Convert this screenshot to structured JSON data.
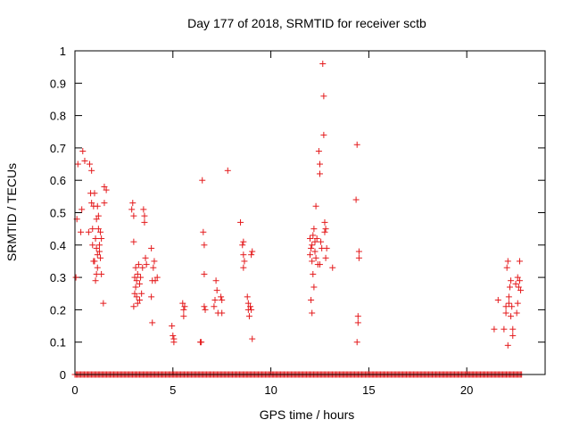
{
  "chart_data": {
    "type": "scatter",
    "title": "Day 177 of 2018, SRMTID for receiver sctb",
    "xlabel": "GPS time / hours",
    "ylabel": "SRMTID / TECUs",
    "xlim": [
      0,
      24
    ],
    "ylim": [
      0,
      1
    ],
    "xticks": [
      "0",
      "5",
      "10",
      "15",
      "20"
    ],
    "xtick_values": [
      0,
      5,
      10,
      15,
      20
    ],
    "yticks": [
      "0",
      "0.1",
      "0.2",
      "0.3",
      "0.4",
      "0.5",
      "0.6",
      "0.7",
      "0.8",
      "0.9",
      "1"
    ],
    "ytick_values": [
      0,
      0.1,
      0.2,
      0.3,
      0.4,
      0.5,
      0.6,
      0.7,
      0.8,
      0.9,
      1
    ],
    "marker": "plus",
    "color": "#e41a1c",
    "grid": false,
    "series": [
      {
        "name": "SRMTID",
        "points": [
          [
            0.05,
            0.3
          ],
          [
            0.1,
            0.48
          ],
          [
            0.15,
            0.65
          ],
          [
            0.3,
            0.44
          ],
          [
            0.35,
            0.51
          ],
          [
            0.4,
            0.69
          ],
          [
            0.5,
            0.66
          ],
          [
            0.7,
            0.44
          ],
          [
            0.75,
            0.65
          ],
          [
            0.8,
            0.56
          ],
          [
            0.85,
            0.63
          ],
          [
            0.85,
            0.53
          ],
          [
            0.9,
            0.45
          ],
          [
            0.9,
            0.4
          ],
          [
            0.95,
            0.35
          ],
          [
            0.95,
            0.52
          ],
          [
            1.0,
            0.56
          ],
          [
            1.0,
            0.35
          ],
          [
            1.05,
            0.29
          ],
          [
            1.05,
            0.42
          ],
          [
            1.1,
            0.48
          ],
          [
            1.1,
            0.39
          ],
          [
            1.1,
            0.31
          ],
          [
            1.15,
            0.52
          ],
          [
            1.15,
            0.37
          ],
          [
            1.15,
            0.33
          ],
          [
            1.2,
            0.49
          ],
          [
            1.2,
            0.45
          ],
          [
            1.25,
            0.38
          ],
          [
            1.25,
            0.4
          ],
          [
            1.3,
            0.44
          ],
          [
            1.3,
            0.36
          ],
          [
            1.35,
            0.42
          ],
          [
            1.35,
            0.31
          ],
          [
            1.45,
            0.22
          ],
          [
            1.5,
            0.58
          ],
          [
            1.5,
            0.53
          ],
          [
            1.6,
            0.57
          ],
          [
            2.9,
            0.51
          ],
          [
            2.95,
            0.53
          ],
          [
            3.0,
            0.41
          ],
          [
            3.0,
            0.49
          ],
          [
            3.0,
            0.21
          ],
          [
            3.05,
            0.25
          ],
          [
            3.05,
            0.3
          ],
          [
            3.1,
            0.33
          ],
          [
            3.1,
            0.27
          ],
          [
            3.15,
            0.29
          ],
          [
            3.15,
            0.24
          ],
          [
            3.2,
            0.22
          ],
          [
            3.2,
            0.31
          ],
          [
            3.25,
            0.34
          ],
          [
            3.3,
            0.28
          ],
          [
            3.3,
            0.23
          ],
          [
            3.35,
            0.3
          ],
          [
            3.4,
            0.25
          ],
          [
            3.45,
            0.33
          ],
          [
            3.5,
            0.51
          ],
          [
            3.55,
            0.47
          ],
          [
            3.55,
            0.49
          ],
          [
            3.6,
            0.36
          ],
          [
            3.65,
            0.34
          ],
          [
            3.9,
            0.39
          ],
          [
            3.9,
            0.24
          ],
          [
            3.95,
            0.16
          ],
          [
            3.95,
            0.29
          ],
          [
            4.0,
            0.33
          ],
          [
            4.05,
            0.35
          ],
          [
            4.1,
            0.29
          ],
          [
            4.2,
            0.3
          ],
          [
            4.95,
            0.15
          ],
          [
            5.0,
            0.12
          ],
          [
            5.05,
            0.1
          ],
          [
            5.05,
            0.11
          ],
          [
            5.5,
            0.22
          ],
          [
            5.55,
            0.2
          ],
          [
            5.55,
            0.18
          ],
          [
            5.6,
            0.21
          ],
          [
            6.4,
            0.1
          ],
          [
            6.45,
            0.1
          ],
          [
            6.5,
            0.6
          ],
          [
            6.55,
            0.44
          ],
          [
            6.6,
            0.4
          ],
          [
            6.6,
            0.31
          ],
          [
            6.6,
            0.21
          ],
          [
            6.65,
            0.2
          ],
          [
            7.1,
            0.21
          ],
          [
            7.15,
            0.23
          ],
          [
            7.2,
            0.29
          ],
          [
            7.25,
            0.26
          ],
          [
            7.3,
            0.19
          ],
          [
            7.45,
            0.24
          ],
          [
            7.5,
            0.19
          ],
          [
            7.5,
            0.23
          ],
          [
            7.8,
            0.63
          ],
          [
            8.45,
            0.47
          ],
          [
            8.55,
            0.4
          ],
          [
            8.6,
            0.41
          ],
          [
            8.6,
            0.37
          ],
          [
            8.6,
            0.33
          ],
          [
            8.65,
            0.35
          ],
          [
            8.8,
            0.24
          ],
          [
            8.85,
            0.22
          ],
          [
            8.85,
            0.2
          ],
          [
            8.9,
            0.18
          ],
          [
            8.95,
            0.21
          ],
          [
            9.0,
            0.2
          ],
          [
            9.0,
            0.37
          ],
          [
            9.05,
            0.38
          ],
          [
            9.05,
            0.11
          ],
          [
            12.0,
            0.42
          ],
          [
            12.0,
            0.37
          ],
          [
            12.05,
            0.23
          ],
          [
            12.05,
            0.39
          ],
          [
            12.1,
            0.35
          ],
          [
            12.1,
            0.19
          ],
          [
            12.1,
            0.4
          ],
          [
            12.15,
            0.31
          ],
          [
            12.15,
            0.43
          ],
          [
            12.2,
            0.45
          ],
          [
            12.2,
            0.27
          ],
          [
            12.25,
            0.41
          ],
          [
            12.25,
            0.38
          ],
          [
            12.3,
            0.52
          ],
          [
            12.3,
            0.36
          ],
          [
            12.35,
            0.42
          ],
          [
            12.4,
            0.34
          ],
          [
            12.45,
            0.69
          ],
          [
            12.5,
            0.65
          ],
          [
            12.5,
            0.62
          ],
          [
            12.5,
            0.34
          ],
          [
            12.55,
            0.41
          ],
          [
            12.6,
            0.39
          ],
          [
            12.65,
            0.96
          ],
          [
            12.7,
            0.74
          ],
          [
            12.7,
            0.86
          ],
          [
            12.75,
            0.44
          ],
          [
            12.75,
            0.47
          ],
          [
            12.8,
            0.36
          ],
          [
            12.8,
            0.45
          ],
          [
            12.85,
            0.39
          ],
          [
            13.15,
            0.33
          ],
          [
            14.35,
            0.54
          ],
          [
            14.4,
            0.71
          ],
          [
            14.4,
            0.1
          ],
          [
            14.45,
            0.18
          ],
          [
            14.45,
            0.16
          ],
          [
            14.5,
            0.38
          ],
          [
            14.5,
            0.36
          ],
          [
            21.4,
            0.14
          ],
          [
            21.6,
            0.23
          ],
          [
            21.9,
            0.14
          ],
          [
            22.0,
            0.21
          ],
          [
            22.0,
            0.19
          ],
          [
            22.05,
            0.33
          ],
          [
            22.1,
            0.35
          ],
          [
            22.1,
            0.09
          ],
          [
            22.15,
            0.22
          ],
          [
            22.15,
            0.24
          ],
          [
            22.2,
            0.27
          ],
          [
            22.25,
            0.29
          ],
          [
            22.25,
            0.18
          ],
          [
            22.3,
            0.21
          ],
          [
            22.35,
            0.12
          ],
          [
            22.35,
            0.14
          ],
          [
            22.5,
            0.28
          ],
          [
            22.55,
            0.19
          ],
          [
            22.6,
            0.3
          ],
          [
            22.6,
            0.22
          ],
          [
            22.65,
            0.27
          ],
          [
            22.7,
            0.35
          ],
          [
            22.7,
            0.29
          ],
          [
            22.75,
            0.26
          ]
        ],
        "zero_range": [
          0.0,
          22.8
        ]
      }
    ]
  }
}
